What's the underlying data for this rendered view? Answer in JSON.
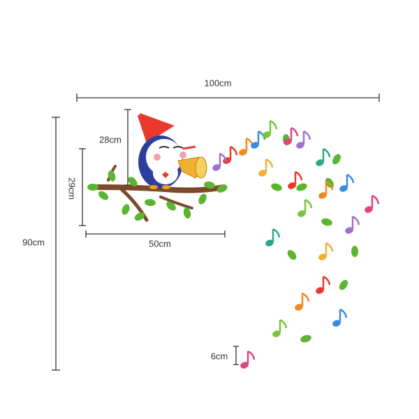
{
  "dimensions": {
    "total_width": "100cm",
    "total_height": "90cm",
    "bird_height": "28cm",
    "branch_height": "29cm",
    "branch_width": "50cm",
    "note_height": "6cm"
  }
}
